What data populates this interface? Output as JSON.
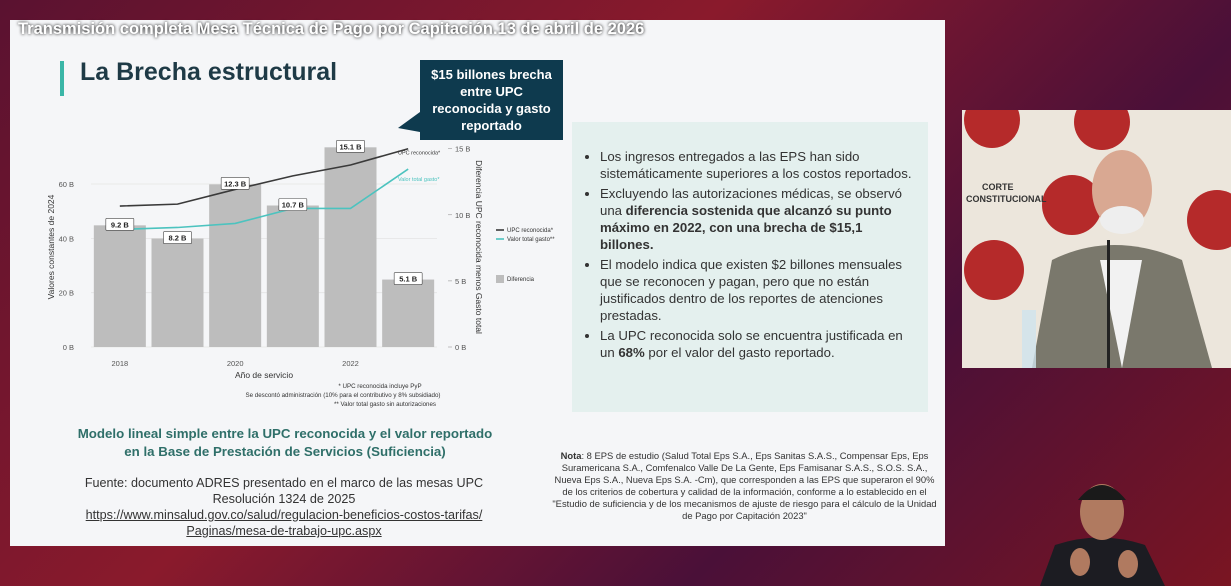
{
  "video_title": "Transmisión completa Mesa Técnica de Pago por Capitación.13 de abril de 2026",
  "slide": {
    "title": "La Brecha estructural",
    "callout": "$15 billones brecha entre UPC reconocida y gasto reportado",
    "bullets": [
      [
        {
          "text": "Los ingresos entregados a las EPS han sido sistemáticamente superiores a los costos reportados."
        }
      ],
      [
        {
          "text": "Excluyendo las autorizaciones médicas, se observó una "
        },
        {
          "text": "diferencia sostenida que alcanzó su punto máximo en 2022, con una brecha de $15,1 billones.",
          "bold": true
        }
      ],
      [
        {
          "text": "El modelo indica que existen $2 billones mensuales que se reconocen y pagan, pero que no están justificados dentro de los reportes de atenciones prestadas."
        }
      ],
      [
        {
          "text": "La UPC reconocida solo se encuentra justificada en un "
        },
        {
          "text": "68%",
          "bold": true
        },
        {
          "text": " por el valor del gasto reportado."
        }
      ]
    ],
    "caption": "Modelo lineal simple entre la UPC reconocida y el valor reportado en la Base de Prestación de Servicios (Suficiencia)",
    "source": "Fuente: documento ADRES presentado en el marco de las mesas UPC Resolución 1324 de 2025",
    "link": "https://www.minsalud.gov.co/salud/regulacion-beneficios-costos-tarifas/Paginas/mesa-de-trabajo-upc.aspx",
    "note_label": "Nota",
    "note": ": 8 EPS de estudio (Salud Total Eps S.A., Eps Sanitas S.A.S., Compensar Eps, Eps Suramericana S.A., Comfenalco Valle De La Gente, Eps Famisanar S.A.S., S.O.S. S.A., Nueva Eps S.A., Nueva Eps S.A. -Cm), que corresponden a las EPS que superaron el 90% de los criterios de cobertura y calidad de la información, conforme a lo establecido en el \"Estudio de suficiencia y de los mecanismos de ajuste de riesgo para el cálculo de la Unidad de Pago por Capitación 2023\""
  },
  "chart_data": {
    "type": "bar_line",
    "categories": [
      "2018",
      null,
      "2020",
      null,
      "2022",
      null
    ],
    "x_label": "Año de servicio",
    "y_label": "Valores constantes de 2024",
    "y2_label": "Diferencia UPC reconocida menos Gasto total",
    "ylim": [
      0,
      74
    ],
    "yticks": [
      {
        "value": 0,
        "label": "0 B"
      },
      {
        "value": 20,
        "label": "20 B"
      },
      {
        "value": 40,
        "label": "40 B"
      },
      {
        "value": 60,
        "label": "60 B"
      }
    ],
    "y2lim": [
      0,
      15.2
    ],
    "y2ticks": [
      {
        "value": 0,
        "label": "0 B"
      },
      {
        "value": 5,
        "label": "5 B"
      },
      {
        "value": 10,
        "label": "10 B"
      },
      {
        "value": 15,
        "label": "15 B"
      }
    ],
    "grid": true,
    "series": [
      {
        "name": "Diferencia",
        "kind": "bar",
        "axis": "y2",
        "color": "#bdbdbd",
        "values": [
          9.2,
          8.2,
          12.3,
          10.7,
          15.1,
          5.1
        ],
        "value_labels": [
          "9.2 B",
          "8.2 B",
          "12.3 B",
          "10.7 B",
          "15.1 B",
          "5.1 B"
        ]
      },
      {
        "name": "UPC reconocida*",
        "kind": "line",
        "color": "#3a3a3a",
        "values": [
          51.9,
          52.6,
          58,
          63,
          67,
          73
        ]
      },
      {
        "name": "Valor total gasto**",
        "kind": "line",
        "color": "#4cc3bf",
        "values": [
          43.3,
          44,
          45.5,
          51,
          51,
          65.5
        ]
      }
    ],
    "line_end_labels": [
      "UPC reconocida*",
      "Valor total gasto*"
    ],
    "footnotes": [
      "* UPC reconocida incluye PyP",
      "Se descontó administración (10% para el contributivo y 8% subsidiado)",
      "** Valor total gasto sin autorizaciones"
    ]
  }
}
